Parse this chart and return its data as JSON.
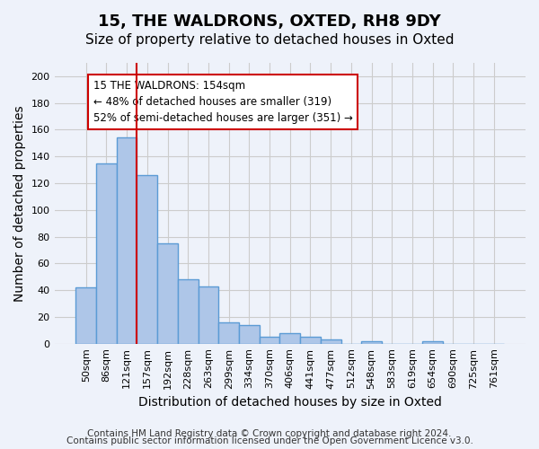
{
  "title1": "15, THE WALDRONS, OXTED, RH8 9DY",
  "title2": "Size of property relative to detached houses in Oxted",
  "xlabel": "Distribution of detached houses by size in Oxted",
  "ylabel": "Number of detached properties",
  "bar_values": [
    42,
    135,
    154,
    126,
    75,
    48,
    43,
    16,
    14,
    5,
    8,
    5,
    3,
    0,
    2,
    0,
    0,
    2,
    0,
    0,
    0
  ],
  "tick_labels": [
    "50sqm",
    "86sqm",
    "121sqm",
    "157sqm",
    "192sqm",
    "228sqm",
    "263sqm",
    "299sqm",
    "334sqm",
    "370sqm",
    "406sqm",
    "441sqm",
    "477sqm",
    "512sqm",
    "548sqm",
    "583sqm",
    "619sqm",
    "654sqm",
    "690sqm",
    "725sqm",
    "761sqm"
  ],
  "bar_color": "#aec6e8",
  "bar_edge_color": "#5b9bd5",
  "bar_edge_width": 1.0,
  "vline_x": 2.5,
  "vline_color": "#cc0000",
  "annotation_text": "15 THE WALDRONS: 154sqm\n← 48% of detached houses are smaller (319)\n52% of semi-detached houses are larger (351) →",
  "annotation_box_color": "#ffffff",
  "annotation_box_edge": "#cc0000",
  "ylim": [
    0,
    210
  ],
  "yticks": [
    0,
    20,
    40,
    60,
    80,
    100,
    120,
    140,
    160,
    180,
    200
  ],
  "grid_color": "#cccccc",
  "bg_color": "#eef2fa",
  "footer1": "Contains HM Land Registry data © Crown copyright and database right 2024.",
  "footer2": "Contains public sector information licensed under the Open Government Licence v3.0.",
  "title_fontsize": 13,
  "subtitle_fontsize": 11,
  "axis_label_fontsize": 10,
  "tick_fontsize": 8,
  "annotation_fontsize": 8.5,
  "footer_fontsize": 7.5
}
